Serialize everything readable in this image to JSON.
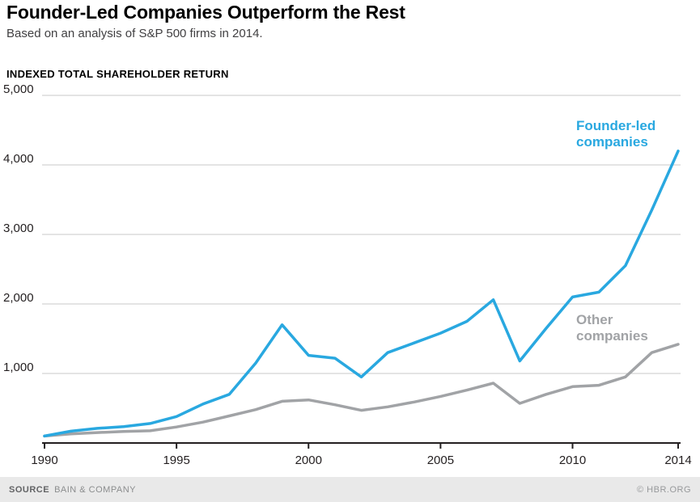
{
  "header": {
    "title": "Founder-Led Companies Outperform the Rest",
    "subtitle": "Based on an analysis of S&P 500 firms in 2014."
  },
  "chart_data": {
    "type": "line",
    "axis_label": "INDEXED TOTAL SHAREHOLDER RETURN",
    "x": [
      1990,
      1991,
      1992,
      1993,
      1994,
      1995,
      1996,
      1997,
      1998,
      1999,
      2000,
      2001,
      2002,
      2003,
      2004,
      2005,
      2006,
      2007,
      2008,
      2009,
      2010,
      2011,
      2012,
      2013,
      2014
    ],
    "series": [
      {
        "name": "Founder-led companies",
        "color": "#29a8e0",
        "values": [
          100,
          170,
          210,
          235,
          280,
          380,
          560,
          700,
          1150,
          1700,
          1260,
          1220,
          950,
          1300,
          1440,
          1580,
          1750,
          2060,
          1180,
          1650,
          2100,
          2170,
          2550,
          3350,
          4200
        ],
        "annotation": {
          "text": "Founder-led\ncompanies"
        }
      },
      {
        "name": "Other companies",
        "color": "#a1a3a6",
        "values": [
          100,
          130,
          150,
          165,
          175,
          230,
          300,
          390,
          480,
          600,
          620,
          550,
          470,
          520,
          590,
          670,
          760,
          860,
          570,
          700,
          810,
          830,
          950,
          1300,
          1420
        ],
        "annotation": {
          "text": "Other\ncompanies"
        }
      }
    ],
    "ylim": [
      0,
      5000
    ],
    "yticks": [
      1000,
      2000,
      3000,
      4000,
      5000
    ],
    "ytick_labels": [
      "1,000",
      "2,000",
      "3,000",
      "4,000",
      "5,000"
    ],
    "xticks": [
      1990,
      1995,
      2000,
      2005,
      2010,
      2014
    ],
    "grid": true,
    "legend_position": "inline-labels",
    "colors": {
      "grid": "#c9c9c9",
      "axis": "#231f20",
      "axis_text": "#231f20"
    }
  },
  "footer": {
    "source_label": "SOURCE",
    "source_value": "BAIN & COMPANY",
    "credit": "© HBR.ORG"
  }
}
